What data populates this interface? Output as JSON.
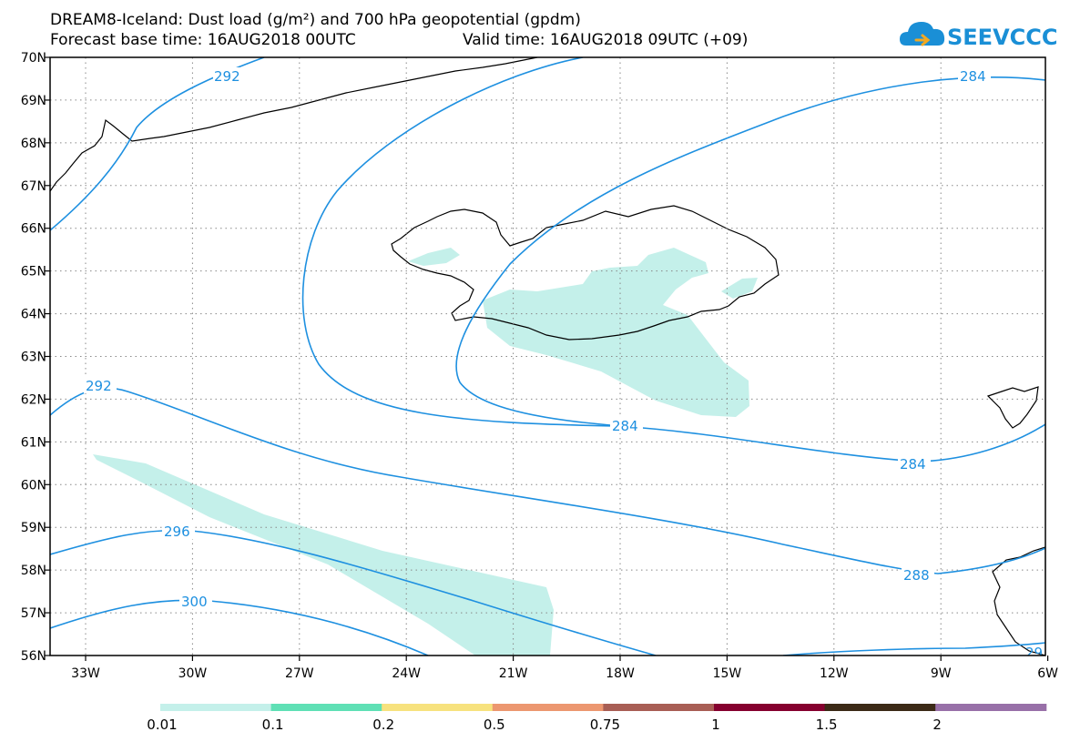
{
  "title": {
    "line1": "DREAM8-Iceland: Dust load (g/m²) and 700 hPa geopotential (gpdm)",
    "base_time": "Forecast base time: 16AUG2018 00UTC",
    "valid_time": "Valid time: 16AUG2018 09UTC (+09)"
  },
  "logo": {
    "text": "SEEVCCC",
    "icon": "cloud-icon",
    "color": "#1a8fd6"
  },
  "map": {
    "lon_ticks": [
      "33W",
      "30W",
      "27W",
      "24W",
      "21W",
      "18W",
      "15W",
      "12W",
      "9W",
      "6W"
    ],
    "lat_ticks": [
      "70N",
      "69N",
      "68N",
      "67N",
      "66N",
      "65N",
      "64N",
      "63N",
      "62N",
      "61N",
      "60N",
      "59N",
      "58N",
      "57N",
      "56N"
    ],
    "contour_color": "#1e90e0",
    "dust_fill_color": "#c4f0ea",
    "contour_labels": [
      "292",
      "284",
      "292",
      "284",
      "284",
      "296",
      "288",
      "300",
      "29"
    ]
  },
  "colorbar": {
    "colors": [
      "#c4f0ea",
      "#5fe0b5",
      "#f7e27e",
      "#ec9770",
      "#a85e55",
      "#85002f",
      "#3c2a17",
      "#9870a8"
    ],
    "labels": [
      "0.01",
      "0.1",
      "0.2",
      "0.5",
      "0.75",
      "1",
      "1.5",
      "2"
    ]
  }
}
